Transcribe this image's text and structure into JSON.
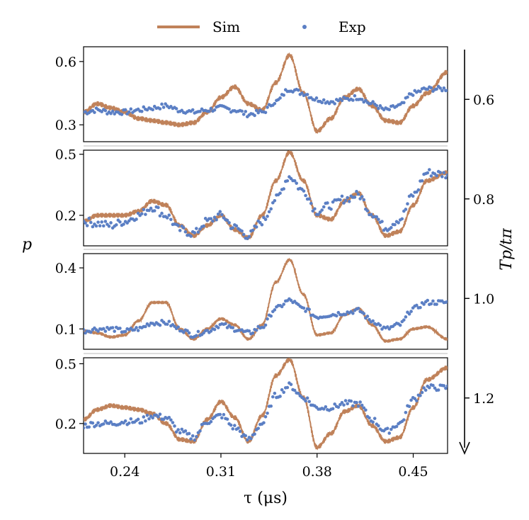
{
  "chart_data": {
    "type": "line",
    "legend": {
      "placement": "top-center",
      "entries": [
        {
          "label": "Sim",
          "marker": "line",
          "color": "#c0825a"
        },
        {
          "label": "Exp",
          "marker": "dot",
          "color": "#5b7fc4"
        }
      ]
    },
    "xlabel": "τ (μs)",
    "ylabel": "p",
    "right_label": "Tp/tπ",
    "xlim": [
      0.21,
      0.475
    ],
    "xticks": [
      0.24,
      0.31,
      0.38,
      0.45
    ],
    "xtick_labels": [
      "0.24",
      "0.31",
      "0.38",
      "0.45"
    ],
    "right_axis": {
      "range": [
        0.5,
        1.3
      ],
      "ticks": [
        0.6,
        0.8,
        1.0,
        1.2
      ],
      "tick_labels": [
        "0.6",
        "0.8",
        "1.0",
        "1.2"
      ],
      "direction": "downward"
    },
    "panels": [
      {
        "tp_over_tpi": 0.6,
        "ylim": [
          0.22,
          0.67
        ],
        "yticks": [
          0.3,
          0.6
        ],
        "ytick_labels": [
          "0.3",
          "0.6"
        ],
        "sim": {
          "x": [
            0.21,
            0.22,
            0.23,
            0.24,
            0.25,
            0.26,
            0.27,
            0.28,
            0.29,
            0.3,
            0.31,
            0.32,
            0.33,
            0.34,
            0.35,
            0.36,
            0.37,
            0.38,
            0.39,
            0.4,
            0.41,
            0.42,
            0.43,
            0.44,
            0.45,
            0.46,
            0.475
          ],
          "y": [
            0.36,
            0.4,
            0.38,
            0.36,
            0.33,
            0.32,
            0.31,
            0.3,
            0.31,
            0.36,
            0.43,
            0.48,
            0.4,
            0.37,
            0.5,
            0.63,
            0.45,
            0.27,
            0.33,
            0.43,
            0.47,
            0.39,
            0.32,
            0.31,
            0.39,
            0.45,
            0.55
          ],
          "ripple": 0.012
        },
        "exp": {
          "x": [
            0.21,
            0.22,
            0.23,
            0.24,
            0.25,
            0.26,
            0.27,
            0.28,
            0.29,
            0.3,
            0.31,
            0.32,
            0.33,
            0.34,
            0.35,
            0.36,
            0.37,
            0.38,
            0.39,
            0.4,
            0.41,
            0.42,
            0.43,
            0.44,
            0.45,
            0.46,
            0.475
          ],
          "y": [
            0.36,
            0.37,
            0.36,
            0.36,
            0.37,
            0.38,
            0.39,
            0.37,
            0.36,
            0.37,
            0.38,
            0.37,
            0.35,
            0.36,
            0.41,
            0.47,
            0.45,
            0.42,
            0.41,
            0.42,
            0.43,
            0.4,
            0.37,
            0.39,
            0.45,
            0.47,
            0.47
          ],
          "noise": 0.012
        }
      },
      {
        "tp_over_tpi": 0.8,
        "ylim": [
          0.05,
          0.52
        ],
        "yticks": [
          0.2,
          0.5
        ],
        "ytick_labels": [
          "0.2",
          "0.5"
        ],
        "sim": {
          "x": [
            0.21,
            0.22,
            0.23,
            0.24,
            0.25,
            0.26,
            0.27,
            0.28,
            0.29,
            0.3,
            0.31,
            0.32,
            0.33,
            0.34,
            0.35,
            0.36,
            0.37,
            0.38,
            0.39,
            0.4,
            0.41,
            0.42,
            0.43,
            0.44,
            0.45,
            0.46,
            0.475
          ],
          "y": [
            0.17,
            0.2,
            0.2,
            0.2,
            0.22,
            0.27,
            0.25,
            0.15,
            0.1,
            0.15,
            0.2,
            0.13,
            0.09,
            0.2,
            0.37,
            0.51,
            0.37,
            0.2,
            0.18,
            0.27,
            0.31,
            0.2,
            0.1,
            0.12,
            0.25,
            0.37,
            0.41
          ],
          "ripple": 0.012
        },
        "exp": {
          "x": [
            0.21,
            0.22,
            0.23,
            0.24,
            0.25,
            0.26,
            0.27,
            0.28,
            0.29,
            0.3,
            0.31,
            0.32,
            0.33,
            0.34,
            0.35,
            0.36,
            0.37,
            0.38,
            0.39,
            0.4,
            0.41,
            0.42,
            0.43,
            0.44,
            0.45,
            0.46,
            0.475
          ],
          "y": [
            0.17,
            0.16,
            0.15,
            0.17,
            0.2,
            0.24,
            0.2,
            0.13,
            0.11,
            0.17,
            0.2,
            0.14,
            0.1,
            0.17,
            0.28,
            0.39,
            0.32,
            0.22,
            0.25,
            0.28,
            0.3,
            0.21,
            0.14,
            0.18,
            0.3,
            0.41,
            0.4
          ],
          "noise": 0.02
        }
      },
      {
        "tp_over_tpi": 1.0,
        "ylim": [
          0.0,
          0.47
        ],
        "yticks": [
          0.1,
          0.4
        ],
        "ytick_labels": [
          "0.1",
          "0.4"
        ],
        "sim": {
          "x": [
            0.21,
            0.22,
            0.23,
            0.24,
            0.25,
            0.26,
            0.27,
            0.28,
            0.29,
            0.3,
            0.31,
            0.32,
            0.33,
            0.34,
            0.35,
            0.36,
            0.37,
            0.38,
            0.39,
            0.4,
            0.41,
            0.42,
            0.43,
            0.44,
            0.45,
            0.46,
            0.475
          ],
          "y": [
            0.09,
            0.08,
            0.06,
            0.07,
            0.14,
            0.23,
            0.23,
            0.1,
            0.05,
            0.1,
            0.15,
            0.12,
            0.05,
            0.12,
            0.33,
            0.44,
            0.27,
            0.07,
            0.08,
            0.17,
            0.2,
            0.12,
            0.04,
            0.05,
            0.1,
            0.11,
            0.05
          ],
          "ripple": 0.008
        },
        "exp": {
          "x": [
            0.21,
            0.22,
            0.23,
            0.24,
            0.25,
            0.26,
            0.27,
            0.28,
            0.29,
            0.3,
            0.31,
            0.32,
            0.33,
            0.34,
            0.35,
            0.36,
            0.37,
            0.38,
            0.39,
            0.4,
            0.41,
            0.42,
            0.43,
            0.44,
            0.45,
            0.46,
            0.475
          ],
          "y": [
            0.09,
            0.1,
            0.1,
            0.09,
            0.1,
            0.13,
            0.13,
            0.1,
            0.07,
            0.09,
            0.12,
            0.1,
            0.08,
            0.11,
            0.2,
            0.24,
            0.2,
            0.16,
            0.17,
            0.18,
            0.19,
            0.14,
            0.1,
            0.12,
            0.2,
            0.23,
            0.23
          ],
          "noise": 0.012
        }
      },
      {
        "tp_over_tpi": 1.2,
        "ylim": [
          0.05,
          0.53
        ],
        "yticks": [
          0.2,
          0.5
        ],
        "ytick_labels": [
          "0.2",
          "0.5"
        ],
        "sim": {
          "x": [
            0.21,
            0.22,
            0.23,
            0.24,
            0.25,
            0.26,
            0.27,
            0.28,
            0.29,
            0.3,
            0.31,
            0.32,
            0.33,
            0.34,
            0.35,
            0.36,
            0.37,
            0.38,
            0.39,
            0.4,
            0.41,
            0.42,
            0.43,
            0.44,
            0.45,
            0.46,
            0.475
          ],
          "y": [
            0.22,
            0.27,
            0.29,
            0.28,
            0.27,
            0.25,
            0.2,
            0.12,
            0.11,
            0.22,
            0.31,
            0.23,
            0.11,
            0.24,
            0.44,
            0.52,
            0.33,
            0.08,
            0.15,
            0.26,
            0.29,
            0.19,
            0.11,
            0.13,
            0.28,
            0.42,
            0.48
          ],
          "ripple": 0.012
        },
        "exp": {
          "x": [
            0.21,
            0.22,
            0.23,
            0.24,
            0.25,
            0.26,
            0.27,
            0.28,
            0.29,
            0.3,
            0.31,
            0.32,
            0.33,
            0.34,
            0.35,
            0.36,
            0.37,
            0.38,
            0.39,
            0.4,
            0.41,
            0.42,
            0.43,
            0.44,
            0.45,
            0.46,
            0.475
          ],
          "y": [
            0.19,
            0.2,
            0.2,
            0.21,
            0.21,
            0.24,
            0.23,
            0.16,
            0.13,
            0.21,
            0.24,
            0.18,
            0.12,
            0.2,
            0.34,
            0.39,
            0.33,
            0.28,
            0.28,
            0.3,
            0.3,
            0.22,
            0.16,
            0.2,
            0.32,
            0.38,
            0.38
          ],
          "noise": 0.015
        }
      }
    ]
  }
}
